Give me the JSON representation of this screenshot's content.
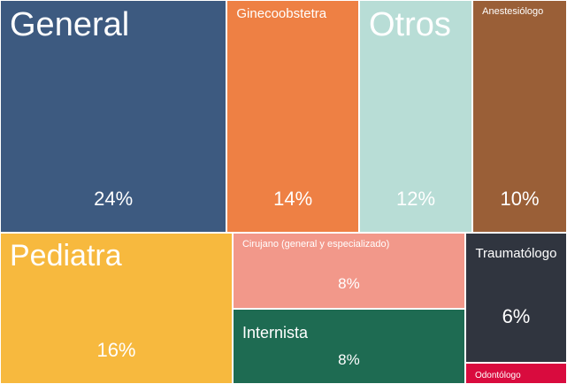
{
  "chart_data": {
    "type": "treemap",
    "categories": [
      "General",
      "Ginecoobstetra",
      "Otros",
      "Anestesiólogo",
      "Pediatra",
      "Cirujano (general y especializado)",
      "Internista",
      "Traumatólogo",
      "Odontólogo"
    ],
    "values": [
      24,
      14,
      12,
      10,
      16,
      8,
      8,
      6,
      1
    ],
    "value_labels": [
      "24%",
      "14%",
      "12%",
      "10%",
      "16%",
      "8%",
      "8%",
      "6%",
      null
    ],
    "colors": [
      "#3d5a80",
      "#ee8044",
      "#b8ddd6",
      "#9a5f37",
      "#f7b93e",
      "#f2988a",
      "#1e6b52",
      "#30353f",
      "#d90b3e"
    ]
  }
}
